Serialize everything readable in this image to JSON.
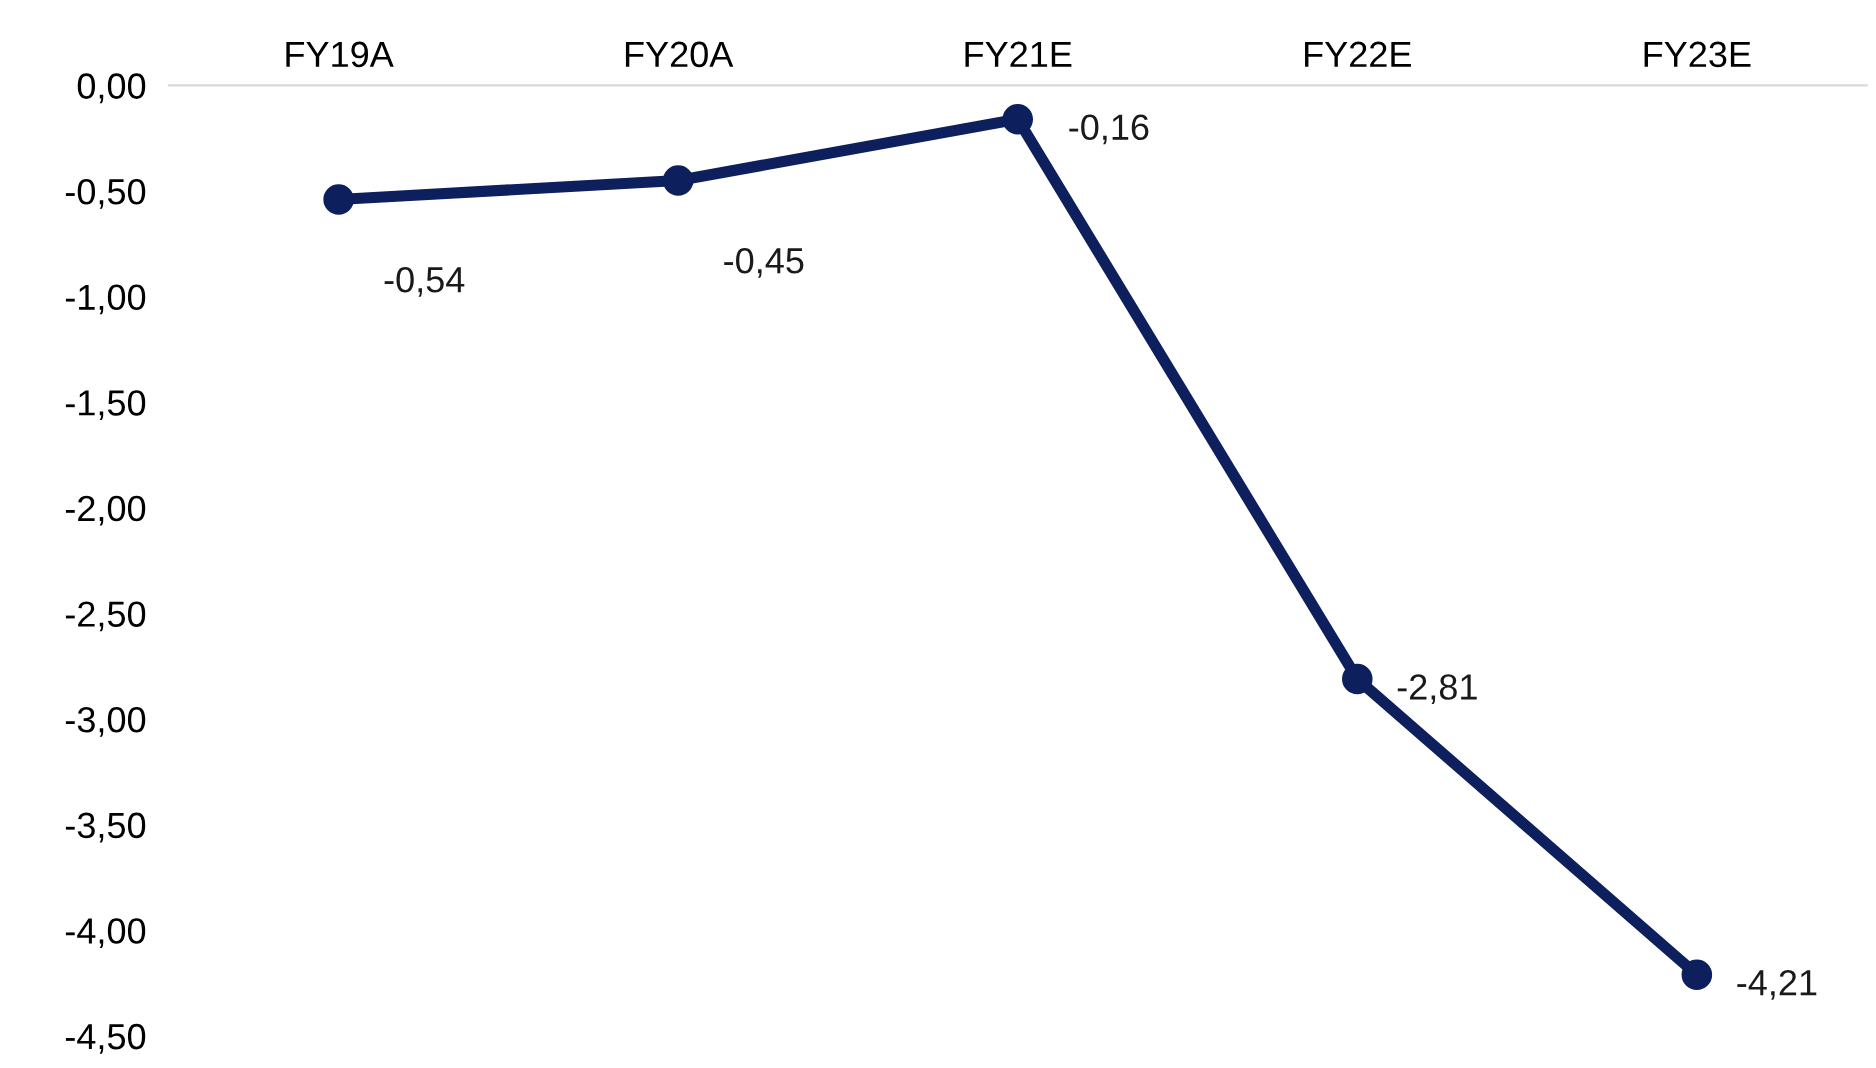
{
  "chart_data": {
    "type": "line",
    "categories": [
      "FY19A",
      "FY20A",
      "FY21E",
      "FY22E",
      "FY23E"
    ],
    "series": [
      {
        "color": "#0d1f5c",
        "values": [
          -0.54,
          -0.45,
          -0.16,
          -2.81,
          -4.21
        ],
        "value_labels": [
          "-0,54",
          "-0,45",
          "-0,16",
          "-2,81",
          "-4,21"
        ]
      }
    ],
    "ylim": [
      -4.5,
      0
    ],
    "yticks": [
      {
        "value": 0,
        "label": "0,00"
      },
      {
        "value": -0.5,
        "label": "-0,50"
      },
      {
        "value": -1,
        "label": "-1,00"
      },
      {
        "value": -1.5,
        "label": "-1,50"
      },
      {
        "value": -2,
        "label": "-2,00"
      },
      {
        "value": -2.5,
        "label": "-2,50"
      },
      {
        "value": -3,
        "label": "-3,00"
      },
      {
        "value": -3.5,
        "label": "-3,50"
      },
      {
        "value": -4,
        "label": "-4,00"
      },
      {
        "value": -4.5,
        "label": "-4,50"
      }
    ],
    "grid": false,
    "legend": false,
    "marker": "circle",
    "line_style": "solid"
  }
}
